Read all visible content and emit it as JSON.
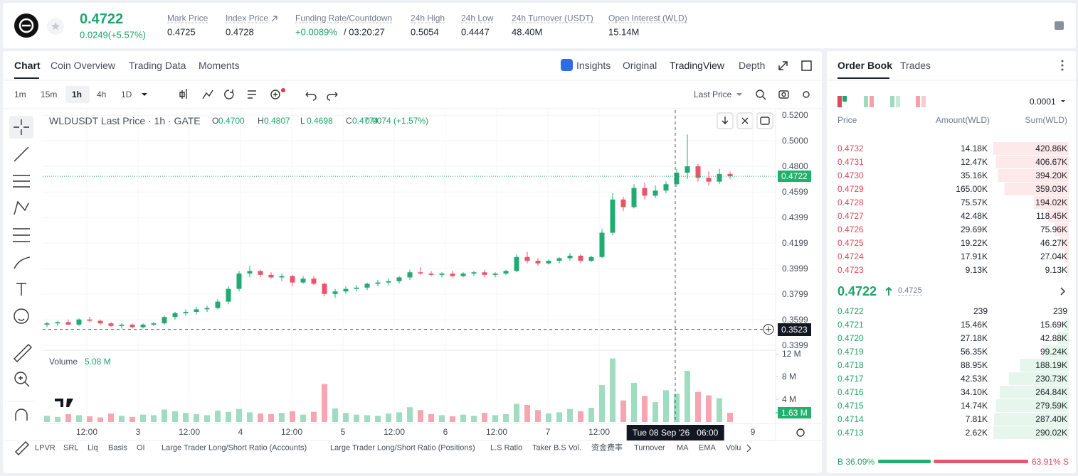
{
  "header": {
    "price": 0.4722,
    "change": "0.0249(+5.57%)",
    "stats": [
      {
        "label": "Mark Price",
        "value": "0.4725"
      },
      {
        "label": "Index Price",
        "value": "0.4728"
      },
      {
        "label": "Funding Rate/Countdown",
        "value": "+0.0089%",
        "extra": "/ 03:20:27"
      },
      {
        "label": "24h High",
        "value": "0.5054"
      },
      {
        "label": "24h Low",
        "value": "0.4447"
      },
      {
        "label": "24h Turnover (USDT)",
        "value": "48.40M"
      },
      {
        "label": "Open Interest (WLD)",
        "value": "15.14M"
      }
    ]
  },
  "chart_tabs": [
    "Chart",
    "Coin Overview",
    "Trading Data",
    "Moments"
  ],
  "view_tabs": [
    "Insights",
    "Original",
    "TradingView",
    "Depth"
  ],
  "intervals": [
    "1m",
    "15m",
    "1h",
    "4h",
    "1D"
  ],
  "price_source": "Last Price",
  "chart": {
    "type": "candlestick",
    "legend": {
      "title": "WLDUSDT Last Price · 1h · GATE",
      "ohlc": [
        [
          "O",
          "0.4700"
        ],
        [
          "H",
          "0.4807"
        ],
        [
          "L",
          "0.4698"
        ],
        [
          "C",
          "0.4774"
        ]
      ],
      "change": "0.0074 (+1.57%)"
    },
    "candles": [
      [
        0.356,
        0.358,
        0.354,
        0.357
      ],
      [
        0.357,
        0.359,
        0.355,
        0.358
      ],
      [
        0.358,
        0.36,
        0.356,
        0.356
      ],
      [
        0.356,
        0.361,
        0.355,
        0.36
      ],
      [
        0.36,
        0.362,
        0.358,
        0.359
      ],
      [
        0.359,
        0.36,
        0.356,
        0.357
      ],
      [
        0.357,
        0.358,
        0.354,
        0.355
      ],
      [
        0.355,
        0.357,
        0.353,
        0.356
      ],
      [
        0.356,
        0.357,
        0.353,
        0.354
      ],
      [
        0.354,
        0.357,
        0.353,
        0.356
      ],
      [
        0.356,
        0.358,
        0.355,
        0.357
      ],
      [
        0.357,
        0.363,
        0.356,
        0.362
      ],
      [
        0.362,
        0.366,
        0.36,
        0.365
      ],
      [
        0.365,
        0.368,
        0.363,
        0.366
      ],
      [
        0.366,
        0.37,
        0.364,
        0.368
      ],
      [
        0.368,
        0.371,
        0.366,
        0.369
      ],
      [
        0.369,
        0.376,
        0.368,
        0.374
      ],
      [
        0.374,
        0.386,
        0.372,
        0.384
      ],
      [
        0.384,
        0.398,
        0.382,
        0.396
      ],
      [
        0.396,
        0.402,
        0.393,
        0.398
      ],
      [
        0.398,
        0.399,
        0.393,
        0.395
      ],
      [
        0.395,
        0.397,
        0.392,
        0.393
      ],
      [
        0.393,
        0.396,
        0.39,
        0.394
      ],
      [
        0.394,
        0.395,
        0.386,
        0.389
      ],
      [
        0.389,
        0.394,
        0.388,
        0.392
      ],
      [
        0.392,
        0.394,
        0.387,
        0.388
      ],
      [
        0.388,
        0.389,
        0.378,
        0.38
      ],
      [
        0.38,
        0.384,
        0.377,
        0.382
      ],
      [
        0.382,
        0.386,
        0.38,
        0.384
      ],
      [
        0.384,
        0.387,
        0.382,
        0.385
      ],
      [
        0.385,
        0.389,
        0.383,
        0.388
      ],
      [
        0.388,
        0.391,
        0.386,
        0.389
      ],
      [
        0.389,
        0.392,
        0.387,
        0.39
      ],
      [
        0.39,
        0.394,
        0.388,
        0.393
      ],
      [
        0.393,
        0.399,
        0.391,
        0.397
      ],
      [
        0.397,
        0.401,
        0.395,
        0.396
      ],
      [
        0.396,
        0.398,
        0.394,
        0.395
      ],
      [
        0.395,
        0.397,
        0.393,
        0.396
      ],
      [
        0.396,
        0.398,
        0.393,
        0.394
      ],
      [
        0.394,
        0.397,
        0.393,
        0.396
      ],
      [
        0.396,
        0.398,
        0.394,
        0.397
      ],
      [
        0.397,
        0.399,
        0.393,
        0.395
      ],
      [
        0.395,
        0.397,
        0.393,
        0.396
      ],
      [
        0.396,
        0.399,
        0.395,
        0.398
      ],
      [
        0.398,
        0.411,
        0.397,
        0.409
      ],
      [
        0.409,
        0.413,
        0.404,
        0.406
      ],
      [
        0.406,
        0.408,
        0.402,
        0.404
      ],
      [
        0.404,
        0.407,
        0.403,
        0.406
      ],
      [
        0.406,
        0.409,
        0.404,
        0.408
      ],
      [
        0.408,
        0.412,
        0.406,
        0.41
      ],
      [
        0.41,
        0.411,
        0.404,
        0.406
      ],
      [
        0.406,
        0.41,
        0.405,
        0.409
      ],
      [
        0.409,
        0.431,
        0.408,
        0.428
      ],
      [
        0.428,
        0.459,
        0.426,
        0.454
      ],
      [
        0.454,
        0.456,
        0.445,
        0.448
      ],
      [
        0.448,
        0.466,
        0.447,
        0.463
      ],
      [
        0.463,
        0.467,
        0.454,
        0.457
      ],
      [
        0.457,
        0.465,
        0.455,
        0.461
      ],
      [
        0.461,
        0.468,
        0.459,
        0.466
      ],
      [
        0.466,
        0.478,
        0.464,
        0.475
      ],
      [
        0.475,
        0.505,
        0.47,
        0.48
      ],
      [
        0.48,
        0.482,
        0.468,
        0.471
      ],
      [
        0.471,
        0.476,
        0.465,
        0.468
      ],
      [
        0.468,
        0.478,
        0.466,
        0.474
      ],
      [
        0.474,
        0.476,
        0.47,
        0.4722
      ]
    ],
    "ylim": [
      0.3365,
      0.524
    ],
    "yticks": [
      {
        "value": 0.52,
        "label": "0.5200"
      },
      {
        "value": 0.5,
        "label": "0.5000"
      },
      {
        "value": 0.48,
        "label": "0.4800"
      },
      0.4599,
      0.4399,
      0.4199,
      0.3999,
      0.3799,
      0.3599,
      0.3399
    ],
    "last_price": 0.4722,
    "crosshair_price": 0.3523,
    "crosshair_time": "Tue 08 Sep '26   06:00",
    "volume_title": "Volume",
    "volume_current": "5.08 M",
    "volumes": [
      1.1,
      0.9,
      1.4,
      1.2,
      1.0,
      0.8,
      1.5,
      1.1,
      0.9,
      1.3,
      1.2,
      2.2,
      1.9,
      1.6,
      1.4,
      1.2,
      2.0,
      1.8,
      2.3,
      1.7,
      1.5,
      1.4,
      1.6,
      1.9,
      1.3,
      1.8,
      6.7,
      2.4,
      1.6,
      1.3,
      1.2,
      1.1,
      1.5,
      1.7,
      2.6,
      2.1,
      1.4,
      1.2,
      1.0,
      1.3,
      1.1,
      1.6,
      1.2,
      1.4,
      3.2,
      3.0,
      2.1,
      1.5,
      1.7,
      2.3,
      1.9,
      2.5,
      6.5,
      11.2,
      3.8,
      6.9,
      4.6,
      3.5,
      5.6,
      5.0,
      9.0,
      5.3,
      4.7,
      4.2,
      1.63
    ],
    "vlim": [
      0,
      12.4
    ],
    "vticks": [
      {
        "value": 12,
        "label": "12 M"
      },
      {
        "value": 8,
        "label": "8 M"
      },
      {
        "value": 4,
        "label": "4 M"
      }
    ],
    "last_volume": {
      "value": 1.63,
      "label": "1.63 M"
    },
    "time_labels": [
      "12:00",
      "3",
      "12:00",
      "4",
      "12:00",
      "5",
      "12:00",
      "6",
      "12:00",
      "7",
      "12:00",
      "9"
    ]
  },
  "indicator_tabs": [
    "LPVR",
    "SRL",
    "Liq",
    "Basis",
    "OI",
    "Large Trader Long/Short Ratio (Accounts)",
    "Large Trader Long/Short Ratio (Positions)",
    "L.S Ratio",
    "Taker B.S Vol.",
    "资金费率",
    "Turnover",
    "MA",
    "EMA",
    "Volu"
  ],
  "order_book": {
    "tabs": [
      "Order Book",
      "Trades"
    ],
    "precision": "0.0001",
    "columns": [
      "Price",
      "Amount(WLD)",
      "Sum(WLD)"
    ],
    "asks": [
      {
        "price": "0.4732",
        "amount": "14.18K",
        "sum": {
          "value": 420860,
          "label": "420.86K"
        }
      },
      {
        "price": "0.4731",
        "amount": "12.47K",
        "sum": {
          "value": 406670,
          "label": "406.67K"
        }
      },
      {
        "price": "0.4730",
        "amount": "35.16K",
        "sum": {
          "value": 394200,
          "label": "394.20K"
        }
      },
      {
        "price": "0.4729",
        "amount": "165.00K",
        "sum": {
          "value": 359030,
          "label": "359.03K"
        }
      },
      {
        "price": "0.4728",
        "amount": "75.57K",
        "sum": {
          "value": 194020,
          "label": "194.02K"
        }
      },
      {
        "price": "0.4727",
        "amount": "42.48K",
        "sum": {
          "value": 118450,
          "label": "118.45K"
        }
      },
      {
        "price": "0.4726",
        "amount": "29.69K",
        "sum": {
          "value": 75960,
          "label": "75.96K"
        }
      },
      {
        "price": "0.4725",
        "amount": "19.22K",
        "sum": {
          "value": 46270,
          "label": "46.27K"
        }
      },
      {
        "price": "0.4724",
        "amount": "17.91K",
        "sum": {
          "value": 27040,
          "label": "27.04K"
        }
      },
      {
        "price": "0.4723",
        "amount": "9.13K",
        "sum": {
          "value": 9130,
          "label": "9.13K"
        }
      }
    ],
    "mid_price": 0.4722,
    "mark_price": 0.4725,
    "bids": [
      {
        "price": "0.4722",
        "amount": "239",
        "sum": 239
      },
      {
        "price": "0.4721",
        "amount": "15.46K",
        "sum": {
          "value": 15690,
          "label": "15.69K"
        }
      },
      {
        "price": "0.4720",
        "amount": "27.18K",
        "sum": {
          "value": 42880,
          "label": "42.88K"
        }
      },
      {
        "price": "0.4719",
        "amount": "56.35K",
        "sum": {
          "value": 99240,
          "label": "99.24K"
        }
      },
      {
        "price": "0.4718",
        "amount": "88.95K",
        "sum": {
          "value": 188190,
          "label": "188.19K"
        }
      },
      {
        "price": "0.4717",
        "amount": "42.53K",
        "sum": {
          "value": 230730,
          "label": "230.73K"
        }
      },
      {
        "price": "0.4716",
        "amount": "34.10K",
        "sum": {
          "value": 264840,
          "label": "264.84K"
        }
      },
      {
        "price": "0.4715",
        "amount": "14.74K",
        "sum": {
          "value": 279590,
          "label": "279.59K"
        }
      },
      {
        "price": "0.4714",
        "amount": "7.81K",
        "sum": {
          "value": 287400,
          "label": "287.40K"
        }
      },
      {
        "price": "0.4713",
        "amount": "2.62K",
        "sum": {
          "value": 290020,
          "label": "290.02K"
        }
      }
    ],
    "buy_ratio": {
      "value": 36.09,
      "label": "B 36.09%"
    },
    "sell_ratio": {
      "value": 63.91,
      "label": "63.91% S"
    }
  }
}
